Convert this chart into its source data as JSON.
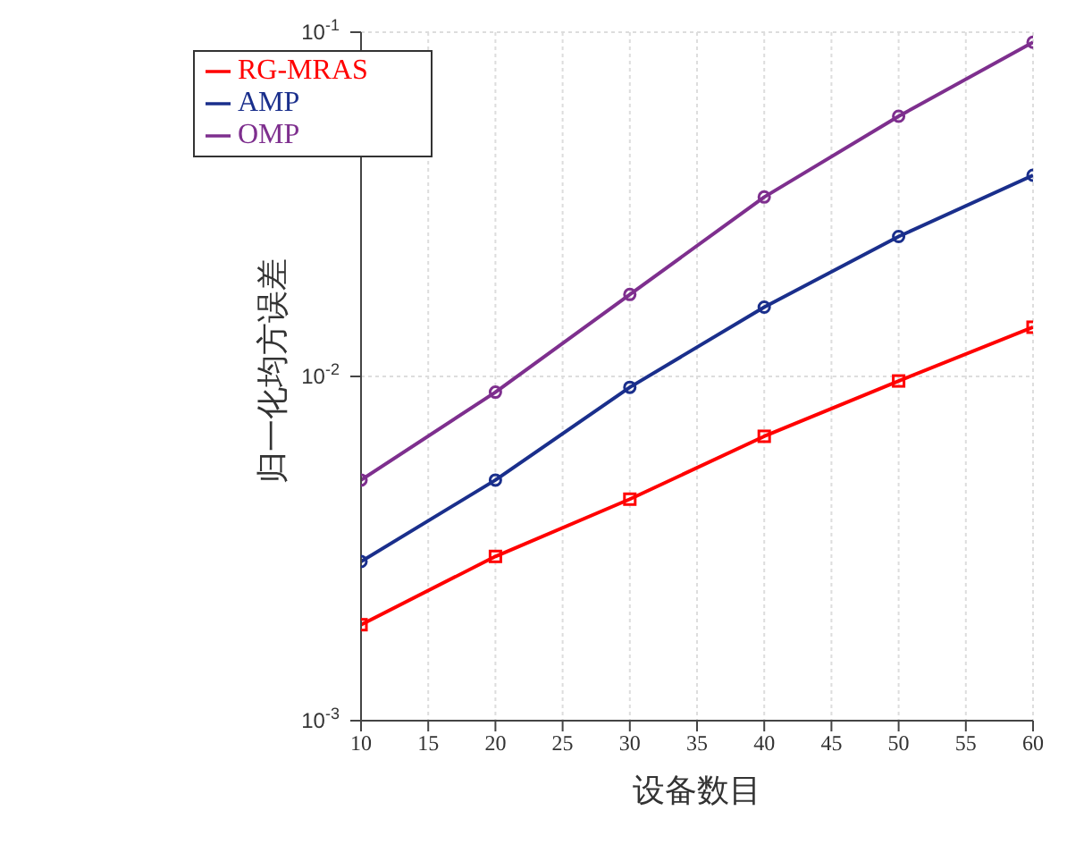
{
  "chart_data": {
    "type": "line",
    "xlabel": "设备数目",
    "ylabel": "归一化均方误差",
    "x": [
      10,
      20,
      30,
      40,
      50,
      60
    ],
    "series": [
      {
        "name": "RG-MRAS",
        "color": "#ff0000",
        "marker": "square",
        "values": [
          0.0019,
          0.003,
          0.0044,
          0.0067,
          0.0097,
          0.0139
        ]
      },
      {
        "name": "AMP",
        "color": "#1a2f8c",
        "marker": "circle",
        "values": [
          0.0029,
          0.005,
          0.0093,
          0.0159,
          0.0255,
          0.0384
        ]
      },
      {
        "name": "OMP",
        "color": "#7e2f8e",
        "marker": "circle",
        "values": [
          0.005,
          0.009,
          0.0173,
          0.0332,
          0.057,
          0.0935
        ]
      }
    ],
    "log": "y",
    "xlim": [
      10,
      60
    ],
    "xticks": [
      10,
      15,
      20,
      25,
      30,
      35,
      40,
      45,
      50,
      55,
      60
    ],
    "ylim": [
      0.001,
      0.1
    ],
    "yticks": [
      {
        "value": 0.001,
        "label": "10$^{-3}$"
      },
      {
        "value": 0.01,
        "label": "10$^{-2}$"
      },
      {
        "value": 0.1,
        "label": "10$^{-1}$"
      }
    ],
    "grid": true,
    "legend": "top left",
    "line_style": "solid"
  }
}
